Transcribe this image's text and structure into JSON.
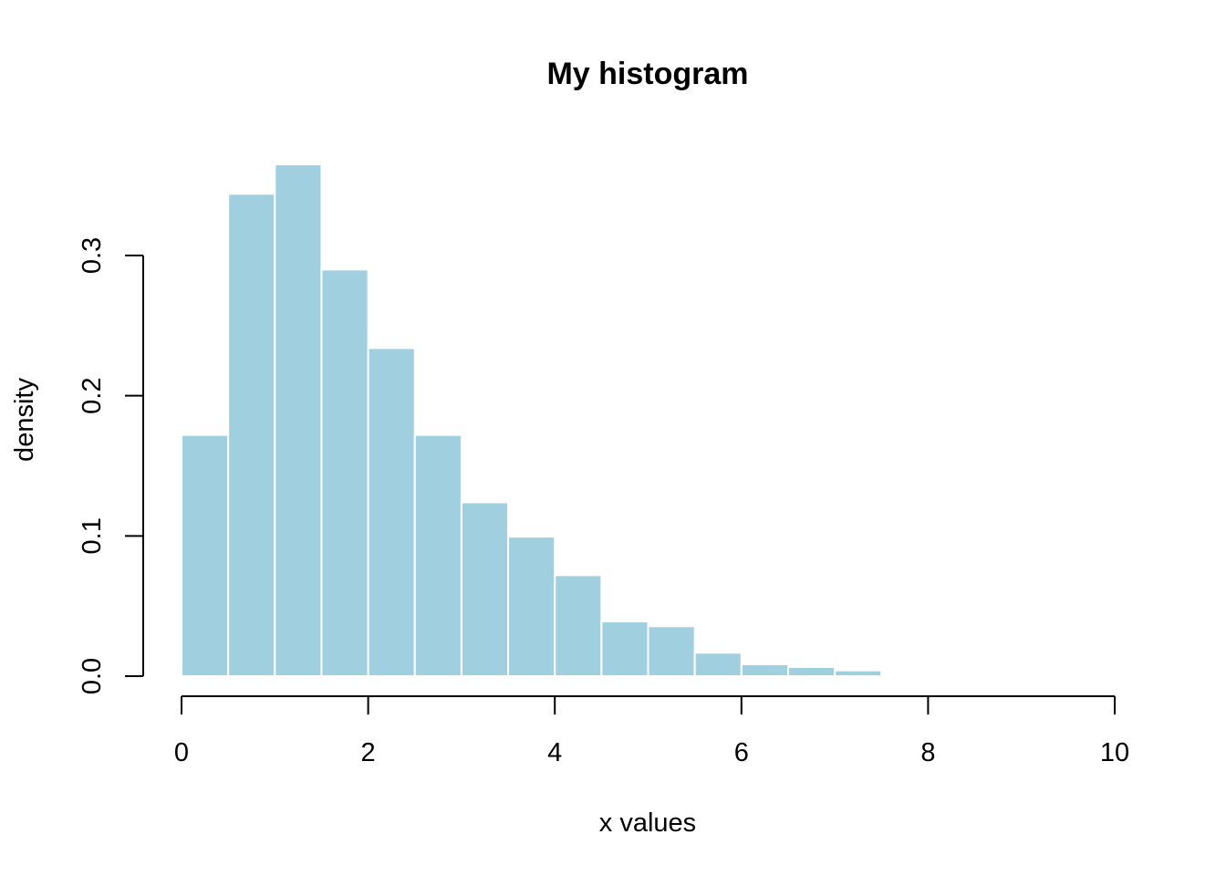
{
  "chart_data": {
    "type": "bar",
    "title": "My histogram",
    "xlabel": "x values",
    "ylabel": "density",
    "bin_edges": [
      0,
      0.5,
      1,
      1.5,
      2,
      2.5,
      3,
      3.5,
      4,
      4.5,
      5,
      5.5,
      6,
      6.5,
      7,
      7.5,
      8,
      8.5,
      9
    ],
    "values": [
      0.172,
      0.344,
      0.365,
      0.29,
      0.234,
      0.172,
      0.124,
      0.0995,
      0.072,
      0.039,
      0.0356,
      0.0167,
      0.0085,
      0.0065,
      0.0041,
      0.0013,
      0.0007,
      0.0003
    ],
    "xlim": [
      0,
      10
    ],
    "ylim": [
      0,
      0.3
    ],
    "xticks": [
      "0",
      "2",
      "4",
      "6",
      "8",
      "10"
    ],
    "yticks": [
      "0.0",
      "0.1",
      "0.2",
      "0.3"
    ],
    "bar_color": "#a0cfe0",
    "bar_border_color": "#ffffff",
    "grid": false
  }
}
